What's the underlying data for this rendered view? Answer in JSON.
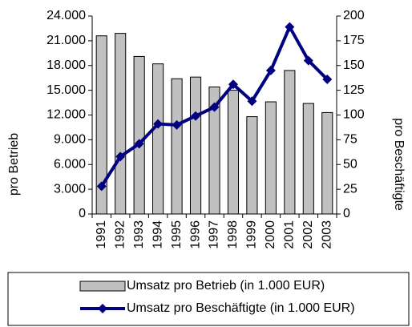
{
  "chart_data": {
    "type": "bar",
    "categories": [
      "1991",
      "1992",
      "1993",
      "1994",
      "1995",
      "1996",
      "1997",
      "1998",
      "1999",
      "2000",
      "2001",
      "2002",
      "2003"
    ],
    "y_label": "pro Betrieb",
    "y2_label": "pro Beschäftigte",
    "series": [
      {
        "name": "Umsatz pro Betrieb (in 1.000 EUR)",
        "type": "bar",
        "color": "#c0c0c0",
        "values": [
          21600,
          21900,
          19100,
          18200,
          16400,
          16600,
          15400,
          15000,
          11800,
          13600,
          17400,
          13400,
          12300
        ]
      },
      {
        "name": "Umsatz pro Beschäftigte (in 1.000 EUR)",
        "type": "line",
        "axis": "y2",
        "color": "#000080",
        "values": [
          28,
          58,
          71,
          91,
          90,
          99,
          108,
          131,
          114,
          145,
          189,
          155,
          136
        ]
      }
    ],
    "ylim": [
      0,
      24000
    ],
    "yticks": [
      0,
      {
        "value": 3000,
        "label": "3.000"
      },
      {
        "value": 6000,
        "label": "6.000"
      },
      {
        "value": 9000,
        "label": "9.000"
      },
      {
        "value": 12000,
        "label": "12.000"
      },
      {
        "value": 15000,
        "label": "15.000"
      },
      {
        "value": 18000,
        "label": "18.000"
      },
      {
        "value": 21000,
        "label": "21.000"
      },
      {
        "value": 24000,
        "label": "24.000"
      }
    ],
    "y2lim": [
      0,
      200
    ],
    "y2ticks": [
      0,
      25,
      50,
      75,
      100,
      125,
      150,
      175,
      200
    ],
    "grid": false,
    "legend": "bottom"
  }
}
